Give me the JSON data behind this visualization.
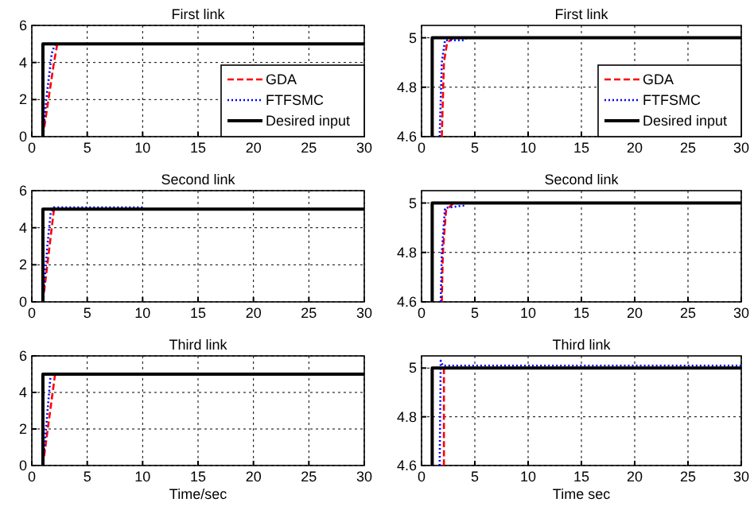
{
  "chart_data": [
    {
      "type": "line",
      "title": "First link",
      "xlim": [
        0,
        30
      ],
      "xticks": [
        0,
        5,
        10,
        15,
        20,
        25,
        30
      ],
      "ylim": [
        0,
        6
      ],
      "yticks": [
        0,
        2,
        4,
        6
      ],
      "grid": true,
      "legend": "bottom right",
      "series": [
        {
          "name": "GDA",
          "color": "#ff0000",
          "line_style": "dashed",
          "x": [
            1,
            1.5,
            2,
            2.3
          ],
          "values": [
            0,
            2,
            4,
            5
          ]
        },
        {
          "name": "FTFSMC",
          "color": "#0000ff",
          "line_style": "dotted",
          "x": [
            1,
            1.3,
            1.8,
            2.1
          ],
          "values": [
            0,
            2,
            4.5,
            5
          ]
        },
        {
          "name": "Desired input",
          "color": "#000000",
          "line_style": "solid",
          "x": [
            1,
            1,
            30
          ],
          "values": [
            0,
            5,
            5
          ]
        }
      ]
    },
    {
      "type": "line",
      "title": "First link",
      "xlim": [
        0,
        30
      ],
      "xticks": [
        0,
        5,
        10,
        15,
        20,
        25,
        30
      ],
      "ylim": [
        4.6,
        5.05
      ],
      "yticks": [
        4.6,
        4.8,
        5
      ],
      "grid": true,
      "legend": "bottom right",
      "series": [
        {
          "name": "GDA",
          "color": "#ff0000",
          "line_style": "dashed",
          "x": [
            1.9,
            2.1,
            2.4,
            3
          ],
          "values": [
            4.6,
            4.9,
            4.98,
            5
          ]
        },
        {
          "name": "FTFSMC",
          "color": "#0000ff",
          "line_style": "dotted",
          "x": [
            1.7,
            1.9,
            2.2,
            4,
            4.2
          ],
          "values": [
            4.6,
            4.9,
            4.99,
            4.99,
            5
          ]
        },
        {
          "name": "Desired input",
          "color": "#000000",
          "line_style": "solid",
          "x": [
            1,
            1,
            30
          ],
          "values": [
            4.6,
            5,
            5
          ]
        }
      ]
    },
    {
      "type": "line",
      "title": "Second link",
      "xlim": [
        0,
        30
      ],
      "xticks": [
        0,
        5,
        10,
        15,
        20,
        25,
        30
      ],
      "ylim": [
        0,
        6
      ],
      "yticks": [
        0,
        2,
        4,
        6
      ],
      "grid": true,
      "series": [
        {
          "color": "#ff0000",
          "line_style": "dashed",
          "x": [
            1,
            1.5,
            2
          ],
          "values": [
            0,
            2.5,
            5
          ]
        },
        {
          "color": "#0000ff",
          "line_style": "dotted",
          "x": [
            1,
            1.4,
            1.7,
            2,
            10
          ],
          "values": [
            0,
            3,
            4.8,
            5.1,
            5.1
          ]
        },
        {
          "color": "#000000",
          "line_style": "solid",
          "x": [
            1,
            1,
            30
          ],
          "values": [
            0,
            5,
            5
          ]
        }
      ]
    },
    {
      "type": "line",
      "title": "Second link",
      "xlim": [
        0,
        30
      ],
      "xticks": [
        0,
        5,
        10,
        15,
        20,
        25,
        30
      ],
      "ylim": [
        4.6,
        5.05
      ],
      "yticks": [
        4.6,
        4.8,
        5
      ],
      "grid": true,
      "series": [
        {
          "color": "#ff0000",
          "line_style": "dashed",
          "x": [
            1.9,
            2,
            2.3,
            3
          ],
          "values": [
            4.6,
            4.8,
            4.97,
            5
          ]
        },
        {
          "color": "#0000ff",
          "line_style": "dotted",
          "x": [
            1.8,
            1.9,
            2.2,
            4
          ],
          "values": [
            4.6,
            4.8,
            4.98,
            4.99
          ]
        },
        {
          "color": "#000000",
          "line_style": "solid",
          "x": [
            1,
            1,
            30
          ],
          "values": [
            4.6,
            5,
            5
          ]
        }
      ]
    },
    {
      "type": "line",
      "title": "Third link",
      "xlabel": "Time/sec",
      "xlim": [
        0,
        30
      ],
      "xticks": [
        0,
        5,
        10,
        15,
        20,
        25,
        30
      ],
      "ylim": [
        0,
        6
      ],
      "yticks": [
        0,
        2,
        4,
        6
      ],
      "grid": true,
      "series": [
        {
          "color": "#ff0000",
          "line_style": "dashed",
          "x": [
            1,
            2.1
          ],
          "values": [
            0,
            5
          ]
        },
        {
          "color": "#0000ff",
          "line_style": "dotted",
          "x": [
            1,
            1.7
          ],
          "values": [
            0,
            5
          ]
        },
        {
          "color": "#000000",
          "line_style": "solid",
          "x": [
            1,
            1,
            30
          ],
          "values": [
            0,
            5,
            5
          ]
        }
      ]
    },
    {
      "type": "line",
      "title": "Third link",
      "xlabel": "Time sec",
      "xlim": [
        0,
        30
      ],
      "xticks": [
        0,
        5,
        10,
        15,
        20,
        25,
        30
      ],
      "ylim": [
        4.6,
        5.05
      ],
      "yticks": [
        4.6,
        4.8,
        5
      ],
      "grid": true,
      "series": [
        {
          "color": "#ff0000",
          "line_style": "dashed",
          "x": [
            2.1,
            2.1
          ],
          "values": [
            4.6,
            5
          ]
        },
        {
          "color": "#0000ff",
          "line_style": "dotted",
          "x": [
            1.7,
            1.8,
            2,
            30
          ],
          "values": [
            4.6,
            5.03,
            5.01,
            5.01
          ]
        },
        {
          "color": "#000000",
          "line_style": "solid",
          "x": [
            1,
            1,
            30
          ],
          "values": [
            4.6,
            5,
            5
          ]
        }
      ]
    }
  ]
}
